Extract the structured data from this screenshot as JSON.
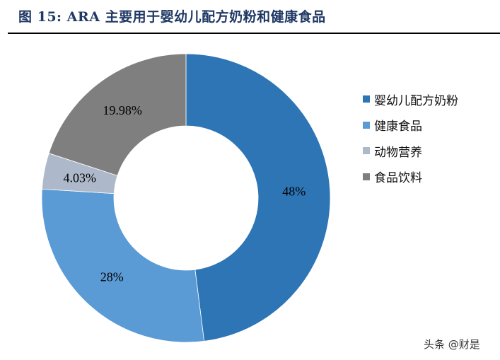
{
  "title": "图 15:  ARA 主要用于婴幼儿配方奶粉和健康食品",
  "watermark": "头条 @财是",
  "chart_data": {
    "type": "pie",
    "subtype": "donut",
    "title": "图 15:  ARA 主要用于婴幼儿配方奶粉和健康食品",
    "categories": [
      "婴幼儿配方奶粉",
      "健康食品",
      "动物营养",
      "食品饮料"
    ],
    "values": [
      48,
      28,
      4.03,
      19.98
    ],
    "labels": [
      "48%",
      "28%",
      "4.03%",
      "19.98%"
    ],
    "colors": [
      "#2e75b6",
      "#5b9bd5",
      "#adb9ca",
      "#7f7f7f"
    ],
    "start_angle_deg": 0,
    "direction": "clockwise",
    "legend_position": "right"
  },
  "legend": [
    {
      "label": "婴幼儿配方奶粉",
      "color": "#2e75b6"
    },
    {
      "label": "健康食品",
      "color": "#5b9bd5"
    },
    {
      "label": "动物营养",
      "color": "#adb9ca"
    },
    {
      "label": "食品饮料",
      "color": "#7f7f7f"
    }
  ]
}
